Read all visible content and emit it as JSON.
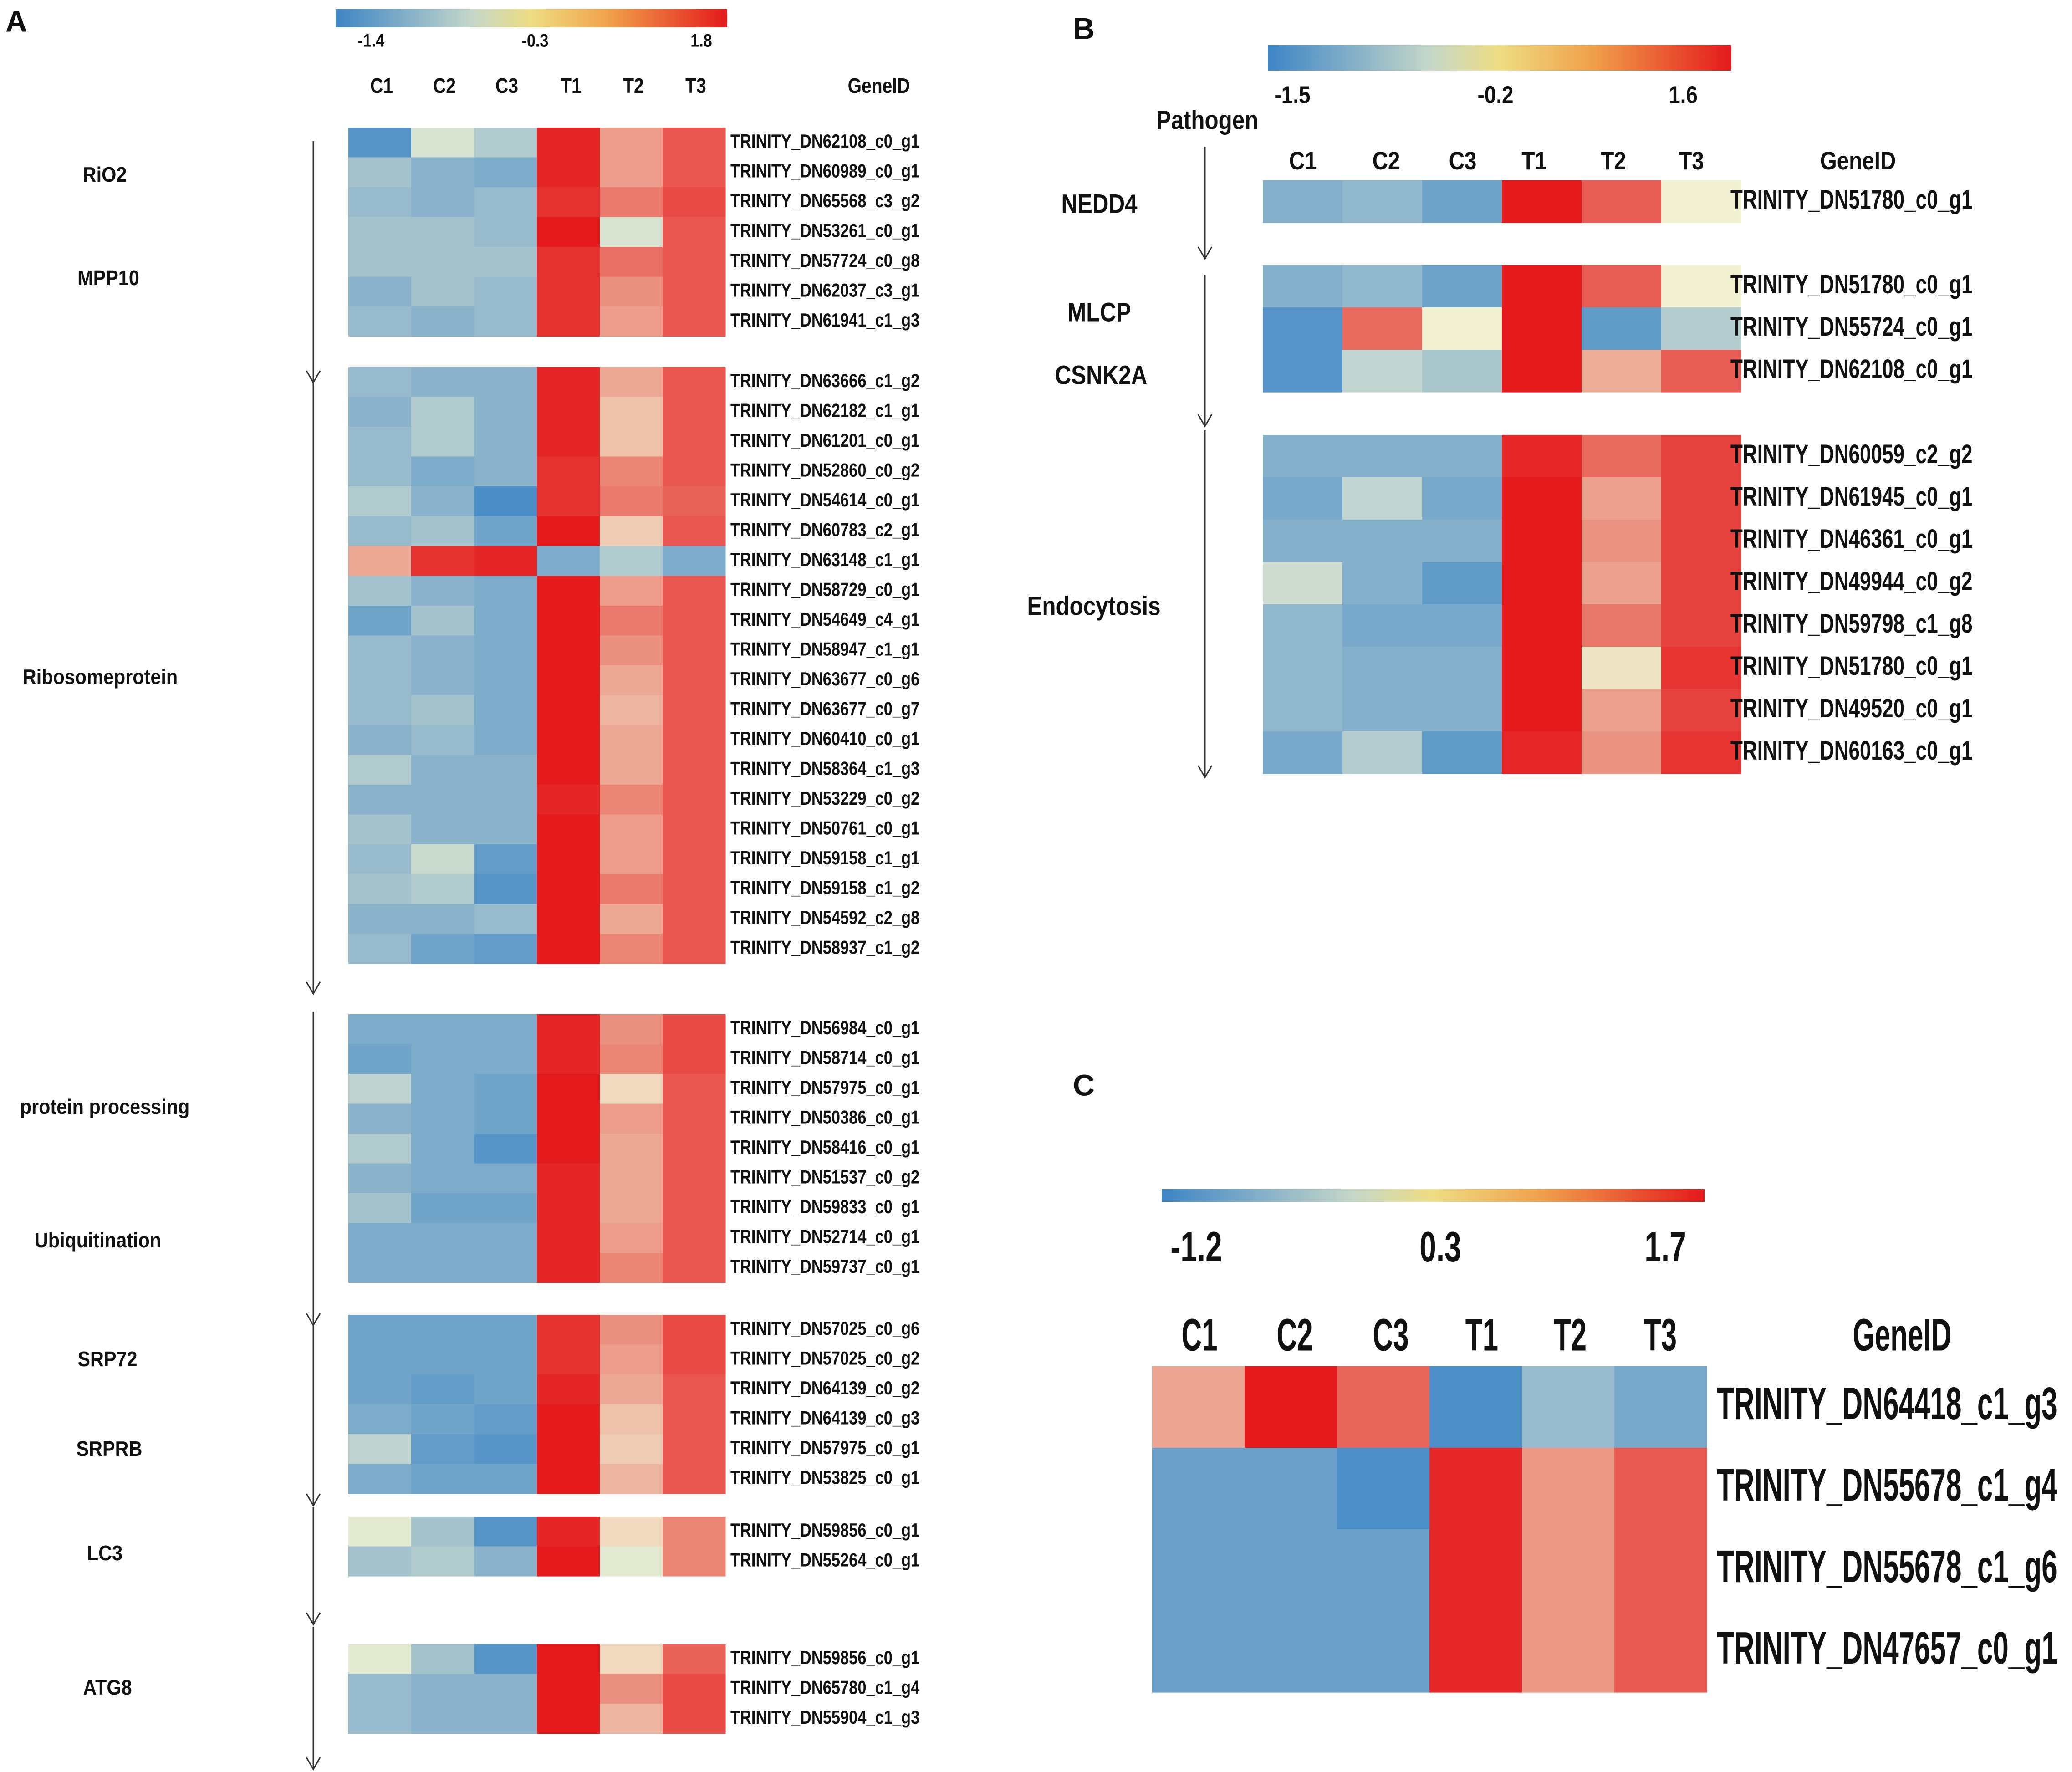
{
  "figure": {
    "palette": {
      "low": "#3d85c6",
      "mid": "#f1f1d2",
      "high": "#e41a1c",
      "grad_mid": "#eedd82"
    },
    "panels": [
      {
        "letter": "A",
        "scale_labels": [
          "-1.4",
          "-0.3",
          "1.8"
        ],
        "header": {
          "columns": [
            "C1",
            "C2",
            "C3",
            "T1",
            "T2",
            "T3"
          ],
          "gene_col": "GeneID"
        },
        "group_labels": [
          "RiO2",
          "MPP10",
          "Ribosomeprotein",
          "protein  processing",
          "Ubiquitination",
          "SRP72",
          "SRPRB",
          "LC3",
          "ATG8"
        ]
      },
      {
        "letter": "B",
        "scale_labels": [
          "-1.5",
          "-0.2",
          "1.6"
        ],
        "header": {
          "columns": [
            "C1",
            "C2",
            "C3",
            "T1",
            "T2",
            "T3"
          ],
          "gene_col": "GeneID"
        },
        "group_labels": [
          "Pathogen",
          "NEDD4",
          "MLCP",
          "CSNK2A",
          "Endocytosis"
        ]
      },
      {
        "letter": "C",
        "scale_labels": [
          "-1.2",
          "0.3",
          "1.7"
        ],
        "header": {
          "columns": [
            "C1",
            "C2",
            "C3",
            "T1",
            "T2",
            "T3"
          ],
          "gene_col": "GeneID"
        },
        "group_labels": []
      }
    ]
  },
  "chart_data": [
    {
      "type": "heatmap",
      "panel": "A",
      "title": "",
      "columns": [
        "C1",
        "C2",
        "C3",
        "T1",
        "T2",
        "T3"
      ],
      "value_range": [
        -1.4,
        1.8
      ],
      "scale_ticks": [
        -1.4,
        -0.3,
        1.8
      ],
      "blocks": [
        {
          "rows": [
            {
              "gene": "TRINITY_DN62108_c0_g1",
              "values": [
                -1.2,
                -0.2,
                -0.5,
                1.7,
                0.7,
                1.3
              ]
            },
            {
              "gene": "TRINITY_DN60989_c0_g1",
              "values": [
                -0.6,
                -0.8,
                -0.9,
                1.7,
                0.7,
                1.3
              ]
            },
            {
              "gene": "TRINITY_DN65568_c3_g2",
              "values": [
                -0.7,
                -0.8,
                -0.7,
                1.6,
                1.0,
                1.4
              ]
            },
            {
              "gene": "TRINITY_DN53261_c0_g1",
              "values": [
                -0.6,
                -0.6,
                -0.7,
                1.8,
                -0.2,
                1.3
              ]
            },
            {
              "gene": "TRINITY_DN57724_c0_g8",
              "values": [
                -0.6,
                -0.6,
                -0.6,
                1.6,
                1.1,
                1.3
              ]
            },
            {
              "gene": "TRINITY_DN62037_c3_g1",
              "values": [
                -0.8,
                -0.6,
                -0.7,
                1.6,
                0.8,
                1.3
              ]
            },
            {
              "gene": "TRINITY_DN61941_c1_g3",
              "values": [
                -0.7,
                -0.8,
                -0.7,
                1.6,
                0.7,
                1.3
              ]
            }
          ]
        },
        {
          "rows": [
            {
              "gene": "TRINITY_DN63666_c1_g2",
              "values": [
                -0.7,
                -0.8,
                -0.8,
                1.7,
                0.6,
                1.3
              ]
            },
            {
              "gene": "TRINITY_DN62182_c1_g1",
              "values": [
                -0.8,
                -0.5,
                -0.8,
                1.7,
                0.4,
                1.3
              ]
            },
            {
              "gene": "TRINITY_DN61201_c0_g1",
              "values": [
                -0.7,
                -0.5,
                -0.8,
                1.7,
                0.4,
                1.3
              ]
            },
            {
              "gene": "TRINITY_DN52860_c0_g2",
              "values": [
                -0.7,
                -0.9,
                -0.8,
                1.6,
                0.9,
                1.3
              ]
            },
            {
              "gene": "TRINITY_DN54614_c0_g1",
              "values": [
                -0.5,
                -0.8,
                -1.3,
                1.6,
                1.0,
                1.2
              ]
            },
            {
              "gene": "TRINITY_DN60783_c2_g1",
              "values": [
                -0.7,
                -0.6,
                -1.0,
                1.8,
                0.3,
                1.3
              ]
            },
            {
              "gene": "TRINITY_DN63148_c1_g1",
              "values": [
                0.6,
                1.6,
                1.7,
                -0.9,
                -0.5,
                -0.9
              ]
            },
            {
              "gene": "TRINITY_DN58729_c0_g1",
              "values": [
                -0.6,
                -0.8,
                -0.9,
                1.8,
                0.7,
                1.3
              ]
            },
            {
              "gene": "TRINITY_DN54649_c4_g1",
              "values": [
                -1.0,
                -0.6,
                -0.9,
                1.8,
                1.0,
                1.3
              ]
            },
            {
              "gene": "TRINITY_DN58947_c1_g1",
              "values": [
                -0.7,
                -0.8,
                -0.9,
                1.8,
                0.8,
                1.3
              ]
            },
            {
              "gene": "TRINITY_DN63677_c0_g6",
              "values": [
                -0.7,
                -0.8,
                -0.9,
                1.8,
                0.6,
                1.3
              ]
            },
            {
              "gene": "TRINITY_DN63677_c0_g7",
              "values": [
                -0.7,
                -0.6,
                -0.9,
                1.8,
                0.5,
                1.3
              ]
            },
            {
              "gene": "TRINITY_DN60410_c0_g1",
              "values": [
                -0.8,
                -0.7,
                -0.9,
                1.8,
                0.6,
                1.3
              ]
            },
            {
              "gene": "TRINITY_DN58364_c1_g3",
              "values": [
                -0.5,
                -0.8,
                -0.8,
                1.8,
                0.6,
                1.3
              ]
            },
            {
              "gene": "TRINITY_DN53229_c0_g2",
              "values": [
                -0.8,
                -0.8,
                -0.8,
                1.7,
                0.9,
                1.3
              ]
            },
            {
              "gene": "TRINITY_DN50761_c0_g1",
              "values": [
                -0.6,
                -0.8,
                -0.8,
                1.8,
                0.7,
                1.3
              ]
            },
            {
              "gene": "TRINITY_DN59158_c1_g1",
              "values": [
                -0.7,
                -0.3,
                -1.1,
                1.8,
                0.7,
                1.3
              ]
            },
            {
              "gene": "TRINITY_DN59158_c1_g2",
              "values": [
                -0.6,
                -0.5,
                -1.2,
                1.8,
                1.0,
                1.3
              ]
            },
            {
              "gene": "TRINITY_DN54592_c2_g8",
              "values": [
                -0.8,
                -0.8,
                -0.7,
                1.8,
                0.6,
                1.3
              ]
            },
            {
              "gene": "TRINITY_DN58937_c1_g2",
              "values": [
                -0.7,
                -1.0,
                -1.1,
                1.8,
                0.9,
                1.3
              ]
            }
          ]
        },
        {
          "rows": [
            {
              "gene": "TRINITY_DN56984_c0_g1",
              "values": [
                -0.9,
                -0.9,
                -0.9,
                1.7,
                0.8,
                1.4
              ]
            },
            {
              "gene": "TRINITY_DN58714_c0_g1",
              "values": [
                -1.0,
                -0.9,
                -0.9,
                1.7,
                0.9,
                1.4
              ]
            },
            {
              "gene": "TRINITY_DN57975_c0_g1",
              "values": [
                -0.4,
                -0.9,
                -1.0,
                1.8,
                0.2,
                1.3
              ]
            },
            {
              "gene": "TRINITY_DN50386_c0_g1",
              "values": [
                -0.8,
                -0.9,
                -1.0,
                1.8,
                0.7,
                1.3
              ]
            },
            {
              "gene": "TRINITY_DN58416_c0_g1",
              "values": [
                -0.5,
                -0.9,
                -1.2,
                1.8,
                0.6,
                1.3
              ]
            },
            {
              "gene": "TRINITY_DN51537_c0_g2",
              "values": [
                -0.8,
                -0.9,
                -0.9,
                1.7,
                0.6,
                1.3
              ]
            },
            {
              "gene": "TRINITY_DN59833_c0_g1",
              "values": [
                -0.6,
                -1.0,
                -1.0,
                1.7,
                0.6,
                1.3
              ]
            },
            {
              "gene": "TRINITY_DN52714_c0_g1",
              "values": [
                -0.9,
                -0.9,
                -0.9,
                1.7,
                0.7,
                1.3
              ]
            },
            {
              "gene": "TRINITY_DN59737_c0_g1",
              "values": [
                -0.9,
                -0.9,
                -0.9,
                1.7,
                0.9,
                1.3
              ]
            }
          ]
        },
        {
          "rows": [
            {
              "gene": "TRINITY_DN57025_c0_g6",
              "values": [
                -1.0,
                -1.0,
                -1.0,
                1.6,
                0.8,
                1.4
              ]
            },
            {
              "gene": "TRINITY_DN57025_c0_g2",
              "values": [
                -1.0,
                -1.0,
                -1.0,
                1.6,
                0.7,
                1.4
              ]
            },
            {
              "gene": "TRINITY_DN64139_c0_g2",
              "values": [
                -1.0,
                -1.1,
                -1.0,
                1.7,
                0.6,
                1.3
              ]
            },
            {
              "gene": "TRINITY_DN64139_c0_g3",
              "values": [
                -0.9,
                -1.0,
                -1.1,
                1.8,
                0.4,
                1.3
              ]
            },
            {
              "gene": "TRINITY_DN57975_c0_g1",
              "values": [
                -0.4,
                -1.1,
                -1.2,
                1.8,
                0.3,
                1.3
              ]
            },
            {
              "gene": "TRINITY_DN53825_c0_g1",
              "values": [
                -0.9,
                -1.0,
                -1.0,
                1.8,
                0.5,
                1.3
              ]
            }
          ]
        },
        {
          "rows": [
            {
              "gene": "TRINITY_DN59856_c0_g1",
              "values": [
                -0.1,
                -0.6,
                -1.2,
                1.7,
                0.2,
                0.9
              ]
            },
            {
              "gene": "TRINITY_DN55264_c0_g1",
              "values": [
                -0.6,
                -0.5,
                -0.8,
                1.8,
                -0.1,
                0.9
              ]
            }
          ]
        },
        {
          "rows": [
            {
              "gene": "TRINITY_DN59856_c0_g1",
              "values": [
                -0.1,
                -0.6,
                -1.2,
                1.8,
                0.2,
                1.2
              ]
            },
            {
              "gene": "TRINITY_DN65780_c1_g4",
              "values": [
                -0.7,
                -0.8,
                -0.8,
                1.8,
                0.8,
                1.4
              ]
            },
            {
              "gene": "TRINITY_DN55904_c1_g3",
              "values": [
                -0.7,
                -0.8,
                -0.8,
                1.8,
                0.5,
                1.4
              ]
            }
          ]
        }
      ]
    },
    {
      "type": "heatmap",
      "panel": "B",
      "title": "",
      "columns": [
        "C1",
        "C2",
        "C3",
        "T1",
        "T2",
        "T3"
      ],
      "value_range": [
        -1.5,
        1.6
      ],
      "scale_ticks": [
        -1.5,
        -0.2,
        1.6
      ],
      "blocks": [
        {
          "rows": [
            {
              "gene": "TRINITY_DN51780_c0_g1",
              "values": [
                -0.9,
                -0.8,
                -1.1,
                1.6,
                1.1,
                0.0
              ]
            }
          ]
        },
        {
          "rows": [
            {
              "gene": "TRINITY_DN51780_c0_g1",
              "values": [
                -0.9,
                -0.8,
                -1.1,
                1.6,
                1.1,
                0.0
              ]
            },
            {
              "gene": "TRINITY_DN55724_c0_g1",
              "values": [
                -1.3,
                1.0,
                0.0,
                1.6,
                -1.2,
                -0.5
              ]
            },
            {
              "gene": "TRINITY_DN62108_c0_g1",
              "values": [
                -1.3,
                -0.4,
                -0.6,
                1.6,
                0.5,
                1.1
              ]
            }
          ]
        },
        {
          "rows": [
            {
              "gene": "TRINITY_DN60059_c2_g2",
              "values": [
                -0.9,
                -0.9,
                -0.9,
                1.5,
                1.0,
                1.3
              ]
            },
            {
              "gene": "TRINITY_DN61945_c0_g1",
              "values": [
                -1.0,
                -0.4,
                -1.0,
                1.6,
                0.6,
                1.3
              ]
            },
            {
              "gene": "TRINITY_DN46361_c0_g1",
              "values": [
                -0.9,
                -0.9,
                -0.9,
                1.6,
                0.7,
                1.3
              ]
            },
            {
              "gene": "TRINITY_DN49944_c0_g2",
              "values": [
                -0.3,
                -0.9,
                -1.2,
                1.6,
                0.6,
                1.3
              ]
            },
            {
              "gene": "TRINITY_DN59798_c1_g8",
              "values": [
                -0.8,
                -1.0,
                -1.0,
                1.6,
                0.9,
                1.3
              ]
            },
            {
              "gene": "TRINITY_DN51780_c0_g1",
              "values": [
                -0.8,
                -0.9,
                -0.9,
                1.6,
                0.1,
                1.4
              ]
            },
            {
              "gene": "TRINITY_DN49520_c0_g1",
              "values": [
                -0.8,
                -0.9,
                -0.9,
                1.6,
                0.6,
                1.3
              ]
            },
            {
              "gene": "TRINITY_DN60163_c0_g1",
              "values": [
                -1.0,
                -0.5,
                -1.2,
                1.5,
                0.7,
                1.4
              ]
            }
          ]
        }
      ]
    },
    {
      "type": "heatmap",
      "panel": "C",
      "title": "",
      "columns": [
        "C1",
        "C2",
        "C3",
        "T1",
        "T2",
        "T3"
      ],
      "value_range": [
        -1.2,
        1.7
      ],
      "scale_ticks": [
        -1.2,
        0.3,
        1.7
      ],
      "blocks": [
        {
          "rows": [
            {
              "gene": "TRINITY_DN64418_c1_g3",
              "values": [
                0.6,
                1.7,
                1.1,
                -1.1,
                -0.6,
                -0.8
              ]
            },
            {
              "gene": "TRINITY_DN55678_c1_g4",
              "values": [
                -0.9,
                -0.9,
                -1.1,
                1.6,
                0.7,
                1.2
              ]
            },
            {
              "gene": "TRINITY_DN55678_c1_g6",
              "values": [
                -0.9,
                -0.9,
                -0.9,
                1.6,
                0.7,
                1.2
              ]
            },
            {
              "gene": "TRINITY_DN47657_c0_g1",
              "values": [
                -0.9,
                -0.9,
                -0.9,
                1.6,
                0.7,
                1.2
              ]
            }
          ]
        }
      ]
    }
  ]
}
